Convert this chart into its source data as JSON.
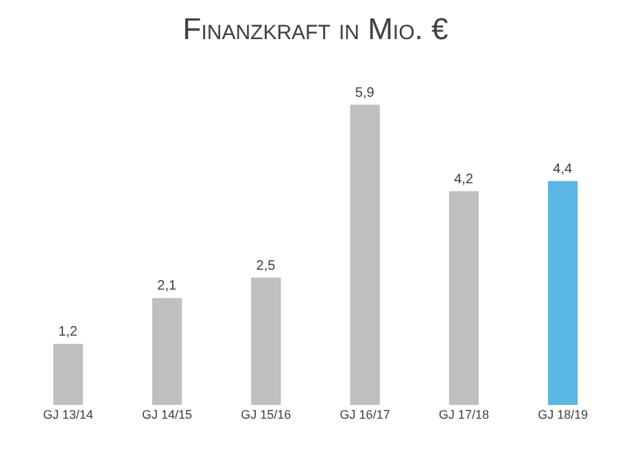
{
  "chart_data": {
    "type": "bar",
    "title": "Finanzkraft in Mio. €",
    "categories": [
      "GJ 13/14",
      "GJ 14/15",
      "GJ 15/16",
      "GJ 16/17",
      "GJ 17/18",
      "GJ 18/19"
    ],
    "values": [
      1.2,
      2.1,
      2.5,
      5.9,
      4.2,
      4.4
    ],
    "value_labels": [
      "1,2",
      "2,1",
      "2,5",
      "5,9",
      "4,2",
      "4,4"
    ],
    "colors": [
      "#bfbfbf",
      "#bfbfbf",
      "#bfbfbf",
      "#bfbfbf",
      "#bfbfbf",
      "#5bb7e6"
    ],
    "legend": false
  }
}
